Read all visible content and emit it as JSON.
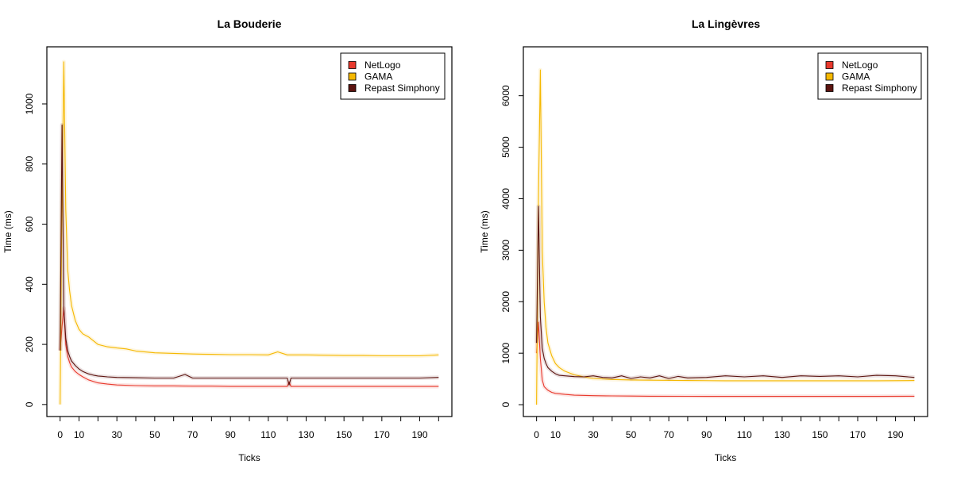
{
  "chart_data": [
    {
      "type": "line",
      "title": "La Bouderie",
      "xlabel": "Ticks",
      "ylabel": "Time (ms)",
      "xlim": [
        -7,
        207
      ],
      "ylim": [
        -40,
        1190
      ],
      "x_ticks": [
        0,
        10,
        20,
        30,
        40,
        50,
        60,
        70,
        80,
        90,
        100,
        110,
        120,
        130,
        140,
        150,
        160,
        170,
        180,
        190,
        200
      ],
      "x_tick_labels": [
        "0",
        "10",
        "",
        "30",
        "",
        "50",
        "",
        "70",
        "",
        "90",
        "",
        "110",
        "",
        "130",
        "",
        "150",
        "",
        "170",
        "",
        "190",
        ""
      ],
      "y_ticks": [
        0,
        200,
        400,
        600,
        800,
        1000
      ],
      "legend_position": "top-right",
      "series": [
        {
          "name": "NetLogo",
          "color": "#e8392d",
          "x": [
            0,
            1,
            2,
            3,
            4,
            5,
            6,
            8,
            10,
            12,
            15,
            18,
            20,
            25,
            30,
            40,
            50,
            60,
            70,
            80,
            90,
            100,
            110,
            120,
            121,
            122,
            130,
            140,
            150,
            160,
            170,
            180,
            190,
            200
          ],
          "y": [
            180,
            260,
            320,
            200,
            160,
            140,
            125,
            110,
            100,
            92,
            82,
            76,
            72,
            68,
            65,
            63,
            62,
            62,
            61,
            61,
            60,
            60,
            60,
            60,
            75,
            60,
            60,
            60,
            60,
            60,
            60,
            60,
            60,
            60
          ]
        },
        {
          "name": "GAMA",
          "color": "#f5b800",
          "x": [
            0,
            1,
            2,
            3,
            4,
            5,
            6,
            8,
            10,
            12,
            15,
            18,
            20,
            25,
            30,
            35,
            40,
            50,
            60,
            70,
            80,
            90,
            100,
            110,
            115,
            120,
            130,
            140,
            150,
            160,
            170,
            180,
            190,
            200
          ],
          "y": [
            0,
            700,
            1140,
            650,
            450,
            380,
            330,
            280,
            250,
            235,
            225,
            210,
            200,
            192,
            188,
            185,
            178,
            172,
            170,
            168,
            167,
            166,
            166,
            165,
            175,
            165,
            165,
            164,
            163,
            163,
            162,
            162,
            162,
            165
          ]
        },
        {
          "name": "Repast Simphony",
          "color": "#5c1410",
          "x": [
            0,
            1,
            2,
            3,
            4,
            5,
            6,
            8,
            10,
            12,
            15,
            18,
            20,
            25,
            30,
            40,
            50,
            60,
            66,
            70,
            80,
            90,
            100,
            110,
            120,
            121,
            122,
            130,
            140,
            150,
            160,
            170,
            180,
            190,
            200
          ],
          "y": [
            180,
            930,
            320,
            220,
            180,
            160,
            145,
            130,
            118,
            110,
            102,
            97,
            95,
            92,
            90,
            89,
            88,
            88,
            100,
            88,
            88,
            88,
            88,
            88,
            88,
            65,
            88,
            88,
            88,
            88,
            88,
            88,
            88,
            88,
            90
          ]
        }
      ]
    },
    {
      "type": "line",
      "title": "La Lingèvres",
      "xlabel": "Ticks",
      "ylabel": "Time (ms)",
      "xlim": [
        -7,
        207
      ],
      "ylim": [
        -230,
        6950
      ],
      "x_ticks": [
        0,
        10,
        20,
        30,
        40,
        50,
        60,
        70,
        80,
        90,
        100,
        110,
        120,
        130,
        140,
        150,
        160,
        170,
        180,
        190,
        200
      ],
      "x_tick_labels": [
        "0",
        "10",
        "",
        "30",
        "",
        "50",
        "",
        "70",
        "",
        "90",
        "",
        "110",
        "",
        "130",
        "",
        "150",
        "",
        "170",
        "",
        "190",
        ""
      ],
      "y_ticks": [
        0,
        1000,
        2000,
        3000,
        4000,
        5000,
        6000
      ],
      "legend_position": "top-right",
      "series": [
        {
          "name": "NetLogo",
          "color": "#e8392d",
          "x": [
            0,
            1,
            2,
            3,
            4,
            6,
            8,
            10,
            15,
            20,
            30,
            40,
            50,
            60,
            80,
            100,
            120,
            140,
            160,
            180,
            200
          ],
          "y": [
            1000,
            1600,
            900,
            480,
            350,
            280,
            240,
            220,
            200,
            185,
            175,
            170,
            168,
            165,
            163,
            162,
            162,
            162,
            162,
            162,
            165
          ]
        },
        {
          "name": "GAMA",
          "color": "#f5b800",
          "x": [
            0,
            1,
            2,
            3,
            4,
            5,
            6,
            8,
            10,
            12,
            15,
            20,
            25,
            30,
            40,
            50,
            60,
            80,
            100,
            120,
            140,
            160,
            180,
            200
          ],
          "y": [
            0,
            4000,
            6500,
            3000,
            2000,
            1500,
            1200,
            950,
            800,
            720,
            650,
            580,
            540,
            510,
            490,
            480,
            475,
            470,
            465,
            465,
            465,
            465,
            465,
            470
          ]
        },
        {
          "name": "Repast Simphony",
          "color": "#5c1410",
          "x": [
            0,
            1,
            2,
            3,
            4,
            5,
            6,
            8,
            10,
            12,
            15,
            20,
            25,
            30,
            35,
            40,
            45,
            50,
            55,
            60,
            65,
            70,
            75,
            80,
            90,
            100,
            110,
            120,
            130,
            140,
            150,
            160,
            170,
            180,
            190,
            200
          ],
          "y": [
            1200,
            3850,
            1700,
            1100,
            900,
            800,
            720,
            650,
            600,
            570,
            560,
            545,
            540,
            560,
            530,
            520,
            560,
            510,
            540,
            520,
            560,
            510,
            550,
            520,
            530,
            560,
            540,
            560,
            530,
            560,
            550,
            560,
            540,
            570,
            560,
            530
          ]
        }
      ]
    }
  ]
}
